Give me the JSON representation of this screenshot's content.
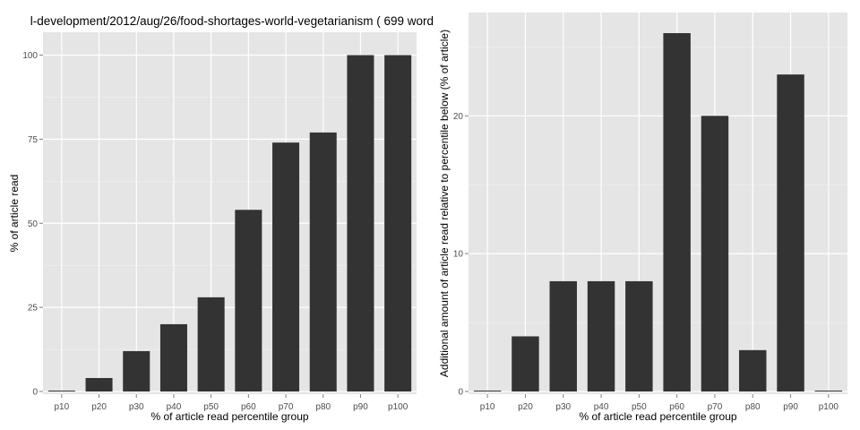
{
  "page_title": "l-development/2012/aug/26/food-shortages-world-vegetarianism ( 699 word",
  "chart_data": [
    {
      "type": "bar",
      "title": "l-development/2012/aug/26/food-shortages-world-vegetarianism ( 699 word",
      "xlabel": "% of article read percentile group",
      "ylabel": "% of article read",
      "categories": [
        "p10",
        "p20",
        "p30",
        "p40",
        "p50",
        "p60",
        "p70",
        "p80",
        "p90",
        "p100"
      ],
      "values": [
        0,
        4,
        12,
        20,
        28,
        54,
        74,
        77,
        100,
        100
      ],
      "ylim": [
        0,
        106
      ],
      "yticks": [
        0,
        25,
        50,
        75,
        100
      ],
      "grid": true,
      "bar_color": "#333333",
      "panel_color": "#e5e5e5"
    },
    {
      "type": "bar",
      "xlabel": "% of article read percentile group",
      "ylabel": "Additional amount of article read relative to percentile below (% of article)",
      "categories": [
        "p10",
        "p20",
        "p30",
        "p40",
        "p50",
        "p60",
        "p70",
        "p80",
        "p90",
        "p100"
      ],
      "values": [
        0,
        4,
        8,
        8,
        8,
        26,
        20,
        3,
        23,
        0
      ],
      "ylim": [
        0,
        27.3
      ],
      "yticks": [
        0,
        10,
        20
      ],
      "grid": true,
      "bar_color": "#333333",
      "panel_color": "#e5e5e5"
    }
  ]
}
